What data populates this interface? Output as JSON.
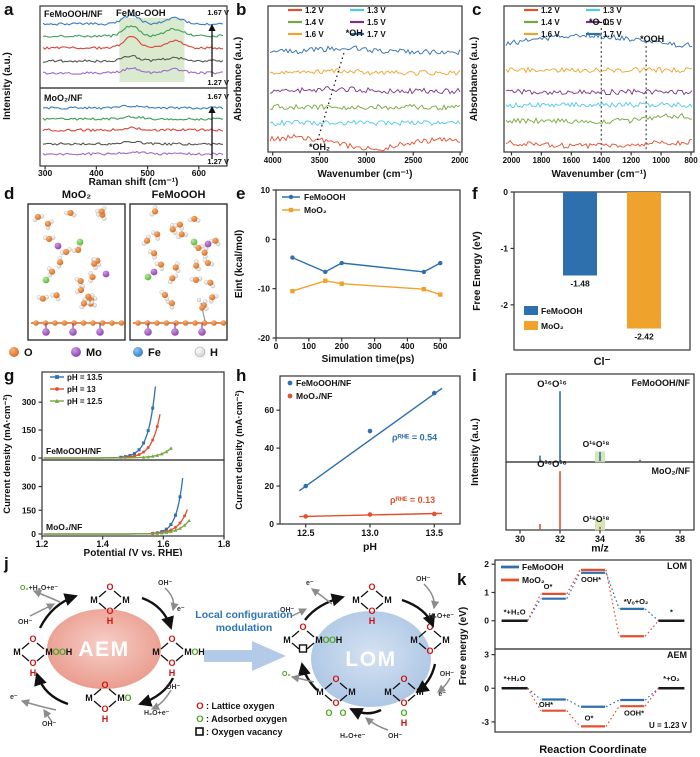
{
  "panel_tags": {
    "a": "a",
    "b": "b",
    "c": "c",
    "d": "d",
    "e": "e",
    "f": "f",
    "g": "g",
    "h": "h",
    "i": "i",
    "j": "j",
    "k": "k"
  },
  "chart_data": [
    {
      "id": "a",
      "type": "line",
      "subtype": "raman_spectra",
      "xlabel": "Raman shift (cm⁻¹)",
      "ylabel": "Intensity (a.u.)",
      "xticks": [
        300,
        400,
        500,
        600
      ],
      "xlim": [
        290,
        655
      ],
      "subpanels": [
        {
          "label": "FeMoOOH/NF",
          "annotation": "FeMo-OOH",
          "highlight_range": [
            445,
            572
          ],
          "peak_centers": [
            468,
            552
          ],
          "n_curves": 5
        },
        {
          "label": "MoO₂/NF",
          "n_curves": 5
        }
      ],
      "curve_colors": [
        "#3a7dc0",
        "#3f9e57",
        "#d9453a",
        "#555555",
        "#9e6bc9"
      ],
      "arrow_labels": {
        "top": "1.67 V",
        "bottom": "1.27 V"
      },
      "highlight_color": "#daeacf"
    },
    {
      "id": "b",
      "type": "line",
      "subtype": "ftir_spectra",
      "xlabel": "Wavenumber (cm⁻¹)",
      "ylabel": "Absorbance (a.u.)",
      "xticks": [
        4000,
        3500,
        3000,
        2500,
        2000
      ],
      "xlim": [
        4050,
        1980
      ],
      "legend": [
        {
          "label": "1.2 V",
          "color": "#e2502f"
        },
        {
          "label": "1.3 V",
          "color": "#4ec9e8"
        },
        {
          "label": "1.4 V",
          "color": "#74a83e"
        },
        {
          "label": "1.5 V",
          "color": "#7c3187"
        },
        {
          "label": "1.6 V",
          "color": "#efa32c"
        },
        {
          "label": "1.7 V",
          "color": "#2e6fae"
        }
      ],
      "curves_bottom_to_top": [
        "1.2 V",
        "1.3 V",
        "1.4 V",
        "1.5 V",
        "1.6 V",
        "1.7 V"
      ],
      "annotations": [
        {
          "text": "*OH",
          "x": 3130
        },
        {
          "text": "*OH₂",
          "x": 3500
        }
      ]
    },
    {
      "id": "c",
      "type": "line",
      "subtype": "ftir_spectra",
      "xlabel": "Wavenumber (cm⁻¹)",
      "ylabel": "Absorbance (a.u.)",
      "xticks": [
        2000,
        1800,
        1600,
        1400,
        1200,
        1000,
        800
      ],
      "xlim": [
        2050,
        780
      ],
      "legend": [
        {
          "label": "1.2 V",
          "color": "#e2502f"
        },
        {
          "label": "1.3 V",
          "color": "#4ec9e8"
        },
        {
          "label": "1.4 V",
          "color": "#74a83e"
        },
        {
          "label": "1.5 V",
          "color": "#7c3187"
        },
        {
          "label": "1.6 V",
          "color": "#efa32c"
        },
        {
          "label": "1.7 V",
          "color": "#2e6fae"
        }
      ],
      "curves_bottom_to_top": [
        "1.2 V",
        "1.4 V",
        "1.3 V",
        "1.5 V",
        "1.6 V",
        "1.7 V"
      ],
      "dashed_lines": [
        1400,
        1100
      ],
      "annotations": [
        {
          "text": "*O-O",
          "x": 1400
        },
        {
          "text": "*OOH",
          "x": 1060
        }
      ]
    },
    {
      "id": "e",
      "type": "line",
      "xlabel": "Simulation time(ps)",
      "ylabel": "Eint (kcal/mol)",
      "xticks": [
        0,
        100,
        200,
        300,
        400,
        500
      ],
      "yticks": [
        -20,
        -10,
        0,
        10
      ],
      "xlim": [
        0,
        560
      ],
      "ylim": [
        -20,
        10
      ],
      "x": [
        50,
        150,
        200,
        450,
        500
      ],
      "series": [
        {
          "name": "FeMoOOH",
          "color": "#2e6fae",
          "marker": "circle",
          "values": [
            -3.7,
            -6.6,
            -4.8,
            -6.6,
            -4.8
          ]
        },
        {
          "name": "MoO₂",
          "color": "#efa32c",
          "marker": "square",
          "values": [
            -10.5,
            -8.4,
            -9.0,
            -10.1,
            -11.2
          ]
        }
      ]
    },
    {
      "id": "f",
      "type": "bar",
      "xlabel": "Cl⁻",
      "ylabel": "Free Energy (eV)",
      "yticks": [
        0,
        -1,
        -2
      ],
      "ylim": [
        0,
        -2.8
      ],
      "bars": [
        {
          "name": "FeMoOOH",
          "color": "#2e6fae",
          "value": -1.48,
          "label": "-1.48"
        },
        {
          "name": "MoO₂",
          "color": "#efa32c",
          "value": -2.42,
          "label": "-2.42"
        }
      ]
    },
    {
      "id": "g",
      "type": "line",
      "subtype": "lsv_polarization",
      "xlabel": "Potential (V vs. RHE)",
      "ylabel": "Current density (mA·cm⁻²)",
      "xticks": [
        "1.2",
        "1.4",
        "1.6",
        "1.8"
      ],
      "yticks": [
        0,
        150,
        300
      ],
      "xlim": [
        1.2,
        1.8
      ],
      "ylim": [
        0,
        430
      ],
      "legend": [
        {
          "label": "pH = 13.5",
          "color": "#2e6fae",
          "marker": "square"
        },
        {
          "label": "pH = 13",
          "color": "#e2502f",
          "marker": "circle"
        },
        {
          "label": "pH = 12.5",
          "color": "#74a83e",
          "marker": "triangle"
        }
      ],
      "subpanels": [
        {
          "label": "FeMoOOH/NF",
          "curves": [
            {
              "ph": "pH = 13.5",
              "end_v": 1.575,
              "end_j": 400,
              "tau": 0.025,
              "color": "#2e6fae",
              "marker": "square"
            },
            {
              "ph": "pH = 13",
              "end_v": 1.59,
              "end_j": 245,
              "tau": 0.027,
              "color": "#e2502f",
              "marker": "circle"
            },
            {
              "ph": "pH = 12.5",
              "end_v": 1.63,
              "end_j": 60,
              "tau": 0.035,
              "color": "#74a83e",
              "marker": "triangle"
            }
          ]
        },
        {
          "label": "MoO₂/NF",
          "curves": [
            {
              "ph": "pH = 13.5",
              "end_v": 1.665,
              "end_j": 370,
              "tau": 0.022,
              "color": "#2e6fae",
              "marker": "square"
            },
            {
              "ph": "pH = 13",
              "end_v": 1.68,
              "end_j": 160,
              "tau": 0.03,
              "color": "#e2502f",
              "marker": "circle"
            },
            {
              "ph": "pH = 12.5",
              "end_v": 1.685,
              "end_j": 85,
              "tau": 0.035,
              "color": "#74a83e",
              "marker": "triangle"
            }
          ]
        }
      ]
    },
    {
      "id": "h",
      "type": "scatter",
      "xlabel": "pH",
      "ylabel": "Current density (mA·cm⁻²)",
      "xticks": [
        "12.5",
        "13.0",
        "13.5"
      ],
      "yticks": [
        0,
        20,
        40,
        60
      ],
      "xlim": [
        12.3,
        13.7
      ],
      "ylim": [
        0,
        78
      ],
      "x": [
        12.5,
        13.0,
        13.5
      ],
      "series": [
        {
          "name": "FeMoOOH/NF",
          "color": "#2e6fae",
          "values": [
            20,
            49,
            69
          ],
          "fit": [
            [
              12.45,
              17.5
            ],
            [
              13.56,
              71.5
            ]
          ],
          "annotation": "ρᴿᴴᴱ = 0.54"
        },
        {
          "name": "MoO₂/NF",
          "color": "#e2502f",
          "values": [
            4,
            5,
            5.3
          ],
          "fit": [
            [
              12.45,
              3.9
            ],
            [
              13.56,
              5.6
            ]
          ],
          "annotation": "ρᴿᴴᴱ = 0.13"
        }
      ]
    },
    {
      "id": "i",
      "type": "bar",
      "subtype": "mass_spectra",
      "xlabel": "m/z",
      "ylabel": "Intensity (a.u.)",
      "xticks": [
        30,
        32,
        34,
        36,
        38
      ],
      "xlim": [
        29.3,
        38.7
      ],
      "highlight_color": "#cfe3ac",
      "subpanels": [
        {
          "label": "FeMoOOH/NF",
          "color": "#2e6fae",
          "peaks": [
            {
              "mz": 31,
              "h": 0.08
            },
            {
              "mz": 32,
              "h": 1.0,
              "text": "O¹⁶O¹⁶"
            },
            {
              "mz": 34,
              "h": 0.13,
              "text": "O¹⁶O¹⁸",
              "highlight": true
            },
            {
              "mz": 36,
              "h": 0.02
            }
          ]
        },
        {
          "label": "MoO₂/NF",
          "color": "#e2502f",
          "peaks": [
            {
              "mz": 31,
              "h": 0.09
            },
            {
              "mz": 32,
              "h": 1.0,
              "text": "O¹⁶O¹⁶"
            },
            {
              "mz": 34,
              "h": 0.04,
              "text": "O¹⁶O¹⁸",
              "highlight": true
            }
          ]
        }
      ]
    },
    {
      "id": "k",
      "type": "line",
      "subtype": "free_energy_diagram",
      "xlabel": "Reaction Coordinate",
      "ylabel": "Free energy (eV)",
      "legend": [
        {
          "label": "FeMoOOH",
          "color": "#2e6fae"
        },
        {
          "label": "MoO₂",
          "color": "#e2502f"
        }
      ],
      "subpanels": [
        {
          "label": "LOM",
          "yticks": [
            0,
            1,
            2
          ],
          "ylim": [
            -1.0,
            2.15
          ],
          "steps": [
            "*+H₂O",
            "O*",
            "OOH*",
            "*Vₒ+O₂",
            "*"
          ],
          "series": [
            {
              "name": "FeMoOOH",
              "color": "#2e6fae",
              "values": [
                0,
                0.78,
                1.7,
                0.42,
                0
              ]
            },
            {
              "name": "MoO₂",
              "color": "#e2502f",
              "values": [
                0,
                0.95,
                1.8,
                -0.55,
                0
              ]
            }
          ]
        },
        {
          "label": "AEM",
          "yticks": [
            -3,
            0,
            3
          ],
          "ylim": [
            -3.9,
            3.5
          ],
          "steps": [
            "*+H₂O",
            "OH*",
            "O*",
            "OOH*",
            "*+O₂"
          ],
          "series": [
            {
              "name": "FeMoOOH",
              "color": "#2e6fae",
              "values": [
                0,
                -1.0,
                -1.65,
                -1.05,
                0
              ]
            },
            {
              "name": "MoO₂",
              "color": "#e2502f",
              "values": [
                0,
                -2.0,
                -3.4,
                -1.6,
                0
              ]
            }
          ],
          "note": "U = 1.23 V"
        }
      ]
    }
  ],
  "panel_d": {
    "titles": [
      "MoO₂",
      "FeMoOOH"
    ],
    "legend": [
      {
        "label": "O",
        "color": "#e0762e"
      },
      {
        "label": "Mo",
        "color": "#9b4fc0"
      },
      {
        "label": "Fe",
        "color": "#3f8fd6"
      },
      {
        "label": "H",
        "color": "#f4f4f4"
      }
    ]
  },
  "panel_j": {
    "aem_label": "AEM",
    "lom_label": "LOM",
    "center_text_line1": "Local configuration",
    "center_text_line2": "modulation",
    "letters": {
      "M": "M",
      "O": "O",
      "H": "H"
    },
    "lattice_color": "#cc1111",
    "adsorbed_color": "#4ea321",
    "legend": [
      {
        "symbol": "O",
        "color": "#cc1111",
        "text": ": Lattice oxygen"
      },
      {
        "symbol": "O",
        "color": "#4ea321",
        "text": ": Adsorbed oxygen"
      },
      {
        "symbol": "□",
        "color": "#111111",
        "text": ": Oxygen vacancy"
      }
    ],
    "aem_labels": [
      {
        "id": "release",
        "green": "O₂",
        "black": "+H₂O+e⁻"
      },
      {
        "id": "oh-left-top",
        "text": "OH⁻"
      },
      {
        "id": "oh-right-top",
        "text": "OH⁻"
      },
      {
        "id": "e-right-top",
        "text": "e⁻"
      },
      {
        "id": "oh-right-bottom",
        "text": "OH⁻"
      },
      {
        "id": "h2oe-right-bottom",
        "text": "H₂O+e⁻"
      },
      {
        "id": "e-left-bottom",
        "text": "e⁻"
      },
      {
        "id": "oh-bottom",
        "text": "OH⁻"
      }
    ],
    "lom_labels": [
      {
        "id": "e-top-left",
        "text": "e⁻"
      },
      {
        "id": "oh-top-left",
        "text": "OH⁻"
      },
      {
        "id": "oh-top-right",
        "text": "OH⁻"
      },
      {
        "id": "h2oe-right",
        "text": "H₂O+e⁻"
      },
      {
        "id": "oh-right",
        "text": "OH⁻"
      },
      {
        "id": "e-right",
        "text": "e⁻"
      },
      {
        "id": "h2oe-bottom",
        "text": "H₂O+e⁻"
      },
      {
        "id": "oh-bottom",
        "text": "OH⁻"
      },
      {
        "id": "o2-release",
        "text": "O₂",
        "color": "#4ea321"
      }
    ]
  }
}
